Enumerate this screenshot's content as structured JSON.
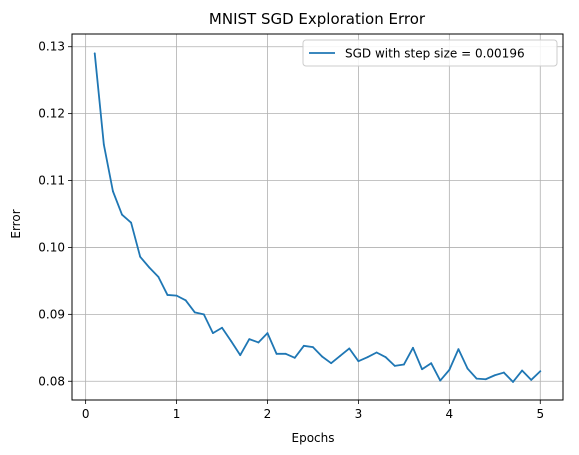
{
  "chart_data": {
    "type": "line",
    "title": "MNIST SGD Exploration Error",
    "xlabel": "Epochs",
    "ylabel": "Error",
    "xlim": [
      -0.15,
      5.25
    ],
    "ylim": [
      0.0772,
      0.1319
    ],
    "x_ticks": [
      0,
      1,
      2,
      3,
      4,
      5
    ],
    "x_tick_labels": [
      "0",
      "1",
      "2",
      "3",
      "4",
      "5"
    ],
    "y_ticks": [
      0.08,
      0.09,
      0.1,
      0.11,
      0.12,
      0.13
    ],
    "y_tick_labels": [
      "0.08",
      "0.09",
      "0.10",
      "0.11",
      "0.12",
      "0.13"
    ],
    "grid": true,
    "legend_position": "upper right",
    "series": [
      {
        "name": "SGD with step size = 0.00196",
        "color": "#1f77b4",
        "x": [
          0.1,
          0.2,
          0.3,
          0.4,
          0.5,
          0.6,
          0.7,
          0.8,
          0.9,
          1.0,
          1.1,
          1.2,
          1.3,
          1.4,
          1.5,
          1.6,
          1.7,
          1.8,
          1.9,
          2.0,
          2.1,
          2.2,
          2.3,
          2.4,
          2.5,
          2.6,
          2.7,
          2.8,
          2.9,
          3.0,
          3.1,
          3.2,
          3.3,
          3.4,
          3.5,
          3.6,
          3.7,
          3.8,
          3.9,
          4.0,
          4.1,
          4.2,
          4.3,
          4.4,
          4.5,
          4.6,
          4.7,
          4.8,
          4.9,
          5.0
        ],
        "y": [
          0.129,
          0.1154,
          0.1084,
          0.1049,
          0.1037,
          0.0986,
          0.097,
          0.0956,
          0.0929,
          0.0928,
          0.0921,
          0.0903,
          0.09,
          0.0872,
          0.088,
          0.086,
          0.0839,
          0.0863,
          0.0858,
          0.0872,
          0.0841,
          0.0841,
          0.0835,
          0.0853,
          0.0851,
          0.0837,
          0.0827,
          0.0838,
          0.0849,
          0.083,
          0.0836,
          0.0843,
          0.0836,
          0.0823,
          0.0825,
          0.085,
          0.0818,
          0.0827,
          0.0801,
          0.0817,
          0.0848,
          0.0819,
          0.0804,
          0.0803,
          0.0809,
          0.0813,
          0.0799,
          0.0816,
          0.0802,
          0.0815
        ]
      }
    ]
  }
}
